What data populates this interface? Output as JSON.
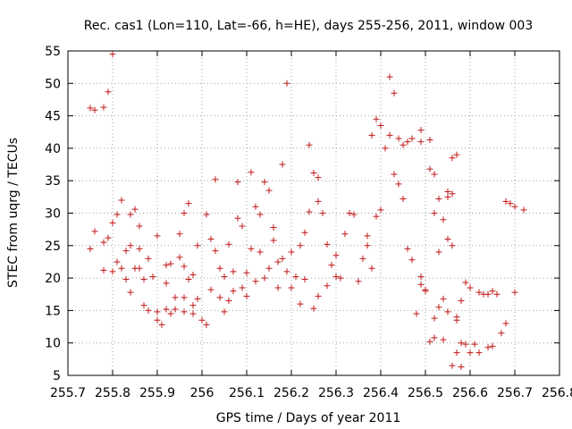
{
  "chart_data": {
    "type": "scatter",
    "title": "Rec. cas1 (Lon=110, Lat=-66, h=HE), days 255-256, 2011, window 003",
    "xlabel": "GPS time / Days of year 2011",
    "ylabel": "STEC from uqrg / TECUs",
    "xlim": [
      255.7,
      256.8
    ],
    "ylim": [
      5,
      55
    ],
    "xticks": [
      "255.7",
      "255.8",
      "255.9",
      "256",
      "256.1",
      "256.2",
      "256.3",
      "256.4",
      "256.5",
      "256.6",
      "256.7",
      "256.8"
    ],
    "yticks": [
      "5",
      "10",
      "15",
      "20",
      "25",
      "30",
      "35",
      "40",
      "45",
      "50",
      "55"
    ],
    "grid": true,
    "marker": "plus",
    "marker_color": "#c01818",
    "points": [
      [
        255.75,
        46.2
      ],
      [
        255.76,
        45.9
      ],
      [
        255.78,
        46.3
      ],
      [
        255.79,
        48.7
      ],
      [
        255.8,
        54.5
      ],
      [
        255.75,
        24.5
      ],
      [
        255.76,
        27.2
      ],
      [
        255.78,
        25.5
      ],
      [
        255.79,
        26.2
      ],
      [
        255.8,
        28.5
      ],
      [
        255.81,
        29.8
      ],
      [
        255.82,
        32.0
      ],
      [
        255.78,
        21.2
      ],
      [
        255.8,
        21.0
      ],
      [
        255.81,
        22.5
      ],
      [
        255.82,
        21.5
      ],
      [
        255.83,
        24.2
      ],
      [
        255.84,
        25.0
      ],
      [
        255.84,
        29.8
      ],
      [
        255.85,
        30.6
      ],
      [
        255.86,
        28.0
      ],
      [
        255.86,
        24.5
      ],
      [
        255.85,
        21.5
      ],
      [
        255.83,
        19.8
      ],
      [
        255.84,
        17.8
      ],
      [
        255.86,
        21.5
      ],
      [
        255.87,
        19.8
      ],
      [
        255.87,
        15.8
      ],
      [
        255.88,
        15.0
      ],
      [
        255.88,
        23.0
      ],
      [
        255.89,
        20.2
      ],
      [
        255.9,
        26.5
      ],
      [
        255.9,
        14.8
      ],
      [
        255.9,
        13.5
      ],
      [
        255.91,
        12.8
      ],
      [
        255.92,
        15.2
      ],
      [
        255.92,
        19.2
      ],
      [
        255.92,
        22.0
      ],
      [
        255.93,
        22.2
      ],
      [
        255.93,
        14.5
      ],
      [
        255.94,
        17.0
      ],
      [
        255.94,
        15.2
      ],
      [
        255.95,
        26.8
      ],
      [
        255.95,
        23.2
      ],
      [
        255.96,
        21.8
      ],
      [
        255.96,
        30.0
      ],
      [
        255.97,
        31.5
      ],
      [
        255.96,
        17.0
      ],
      [
        255.96,
        14.8
      ],
      [
        255.97,
        19.8
      ],
      [
        255.98,
        20.5
      ],
      [
        255.98,
        15.8
      ],
      [
        255.98,
        14.5
      ],
      [
        255.99,
        16.8
      ],
      [
        255.99,
        25.0
      ],
      [
        256.0,
        13.5
      ],
      [
        256.01,
        29.8
      ],
      [
        256.01,
        12.8
      ],
      [
        256.02,
        26.0
      ],
      [
        256.02,
        18.2
      ],
      [
        256.03,
        24.2
      ],
      [
        256.03,
        35.2
      ],
      [
        256.04,
        21.5
      ],
      [
        256.04,
        17.0
      ],
      [
        256.05,
        20.2
      ],
      [
        256.05,
        14.8
      ],
      [
        256.06,
        25.2
      ],
      [
        256.06,
        16.5
      ],
      [
        256.07,
        18.0
      ],
      [
        256.07,
        21.0
      ],
      [
        256.08,
        34.8
      ],
      [
        256.08,
        29.2
      ],
      [
        256.09,
        28.0
      ],
      [
        256.09,
        18.5
      ],
      [
        256.1,
        20.8
      ],
      [
        256.1,
        17.2
      ],
      [
        256.11,
        36.3
      ],
      [
        256.11,
        24.5
      ],
      [
        256.12,
        19.5
      ],
      [
        256.12,
        31.0
      ],
      [
        256.13,
        29.8
      ],
      [
        256.13,
        24.0
      ],
      [
        256.14,
        34.8
      ],
      [
        256.14,
        20.0
      ],
      [
        256.15,
        33.5
      ],
      [
        256.15,
        21.5
      ],
      [
        256.16,
        27.8
      ],
      [
        256.16,
        25.8
      ],
      [
        256.17,
        22.5
      ],
      [
        256.17,
        18.5
      ],
      [
        256.18,
        37.5
      ],
      [
        256.18,
        23.0
      ],
      [
        256.19,
        50.0
      ],
      [
        256.19,
        21.0
      ],
      [
        256.2,
        18.5
      ],
      [
        256.2,
        24.0
      ],
      [
        256.21,
        20.2
      ],
      [
        256.22,
        25.0
      ],
      [
        256.22,
        16.0
      ],
      [
        256.23,
        27.0
      ],
      [
        256.23,
        19.8
      ],
      [
        256.24,
        40.5
      ],
      [
        256.24,
        30.2
      ],
      [
        256.25,
        36.2
      ],
      [
        256.25,
        15.3
      ],
      [
        256.26,
        31.8
      ],
      [
        256.26,
        35.5
      ],
      [
        256.26,
        17.2
      ],
      [
        256.27,
        30.0
      ],
      [
        256.28,
        25.2
      ],
      [
        256.28,
        18.8
      ],
      [
        256.29,
        22.0
      ],
      [
        256.3,
        20.2
      ],
      [
        256.3,
        23.5
      ],
      [
        256.31,
        20.0
      ],
      [
        256.32,
        26.8
      ],
      [
        256.33,
        30.0
      ],
      [
        256.34,
        29.8
      ],
      [
        256.35,
        19.5
      ],
      [
        256.36,
        23.0
      ],
      [
        256.37,
        26.5
      ],
      [
        256.37,
        25.0
      ],
      [
        256.38,
        21.5
      ],
      [
        256.38,
        42.0
      ],
      [
        256.39,
        44.5
      ],
      [
        256.39,
        29.5
      ],
      [
        256.4,
        30.5
      ],
      [
        256.4,
        43.5
      ],
      [
        256.41,
        40.0
      ],
      [
        256.42,
        51.0
      ],
      [
        256.42,
        42.0
      ],
      [
        256.43,
        48.5
      ],
      [
        256.43,
        36.0
      ],
      [
        256.44,
        41.5
      ],
      [
        256.44,
        34.5
      ],
      [
        256.45,
        40.5
      ],
      [
        256.45,
        32.2
      ],
      [
        256.46,
        24.5
      ],
      [
        256.46,
        41.0
      ],
      [
        256.47,
        41.5
      ],
      [
        256.47,
        22.8
      ],
      [
        256.48,
        14.5
      ],
      [
        256.49,
        42.8
      ],
      [
        256.49,
        41.0
      ],
      [
        256.49,
        20.2
      ],
      [
        256.49,
        19.0
      ],
      [
        256.5,
        18.2
      ],
      [
        256.5,
        18.0
      ],
      [
        256.51,
        41.3
      ],
      [
        256.51,
        10.2
      ],
      [
        256.51,
        36.8
      ],
      [
        256.52,
        36.0
      ],
      [
        256.52,
        30.0
      ],
      [
        256.52,
        10.8
      ],
      [
        256.53,
        24.0
      ],
      [
        256.53,
        32.2
      ],
      [
        256.54,
        29.0
      ],
      [
        256.54,
        16.8
      ],
      [
        256.54,
        10.5
      ],
      [
        256.55,
        33.3
      ],
      [
        256.55,
        32.5
      ],
      [
        256.55,
        26.0
      ],
      [
        256.55,
        14.8
      ],
      [
        256.56,
        33.0
      ],
      [
        256.56,
        25.0
      ],
      [
        256.56,
        6.5
      ],
      [
        256.57,
        8.5
      ],
      [
        256.57,
        39.0
      ],
      [
        256.57,
        13.5
      ],
      [
        256.58,
        6.3
      ],
      [
        256.58,
        10.0
      ],
      [
        256.59,
        19.3
      ],
      [
        256.59,
        9.8
      ],
      [
        256.6,
        8.5
      ],
      [
        256.6,
        18.5
      ],
      [
        256.61,
        9.8
      ],
      [
        256.62,
        17.8
      ],
      [
        256.62,
        8.5
      ],
      [
        256.63,
        17.5
      ],
      [
        256.64,
        17.5
      ],
      [
        256.65,
        9.5
      ],
      [
        256.65,
        18.0
      ],
      [
        256.66,
        17.5
      ],
      [
        256.67,
        11.5
      ],
      [
        256.68,
        13.0
      ],
      [
        256.68,
        31.8
      ],
      [
        256.69,
        31.5
      ],
      [
        256.7,
        17.8
      ],
      [
        256.7,
        31.0
      ],
      [
        256.72,
        30.5
      ],
      [
        256.52,
        13.8
      ],
      [
        256.56,
        38.5
      ],
      [
        256.58,
        16.5
      ],
      [
        256.57,
        14.0
      ],
      [
        256.53,
        15.5
      ],
      [
        256.64,
        9.3
      ]
    ]
  }
}
